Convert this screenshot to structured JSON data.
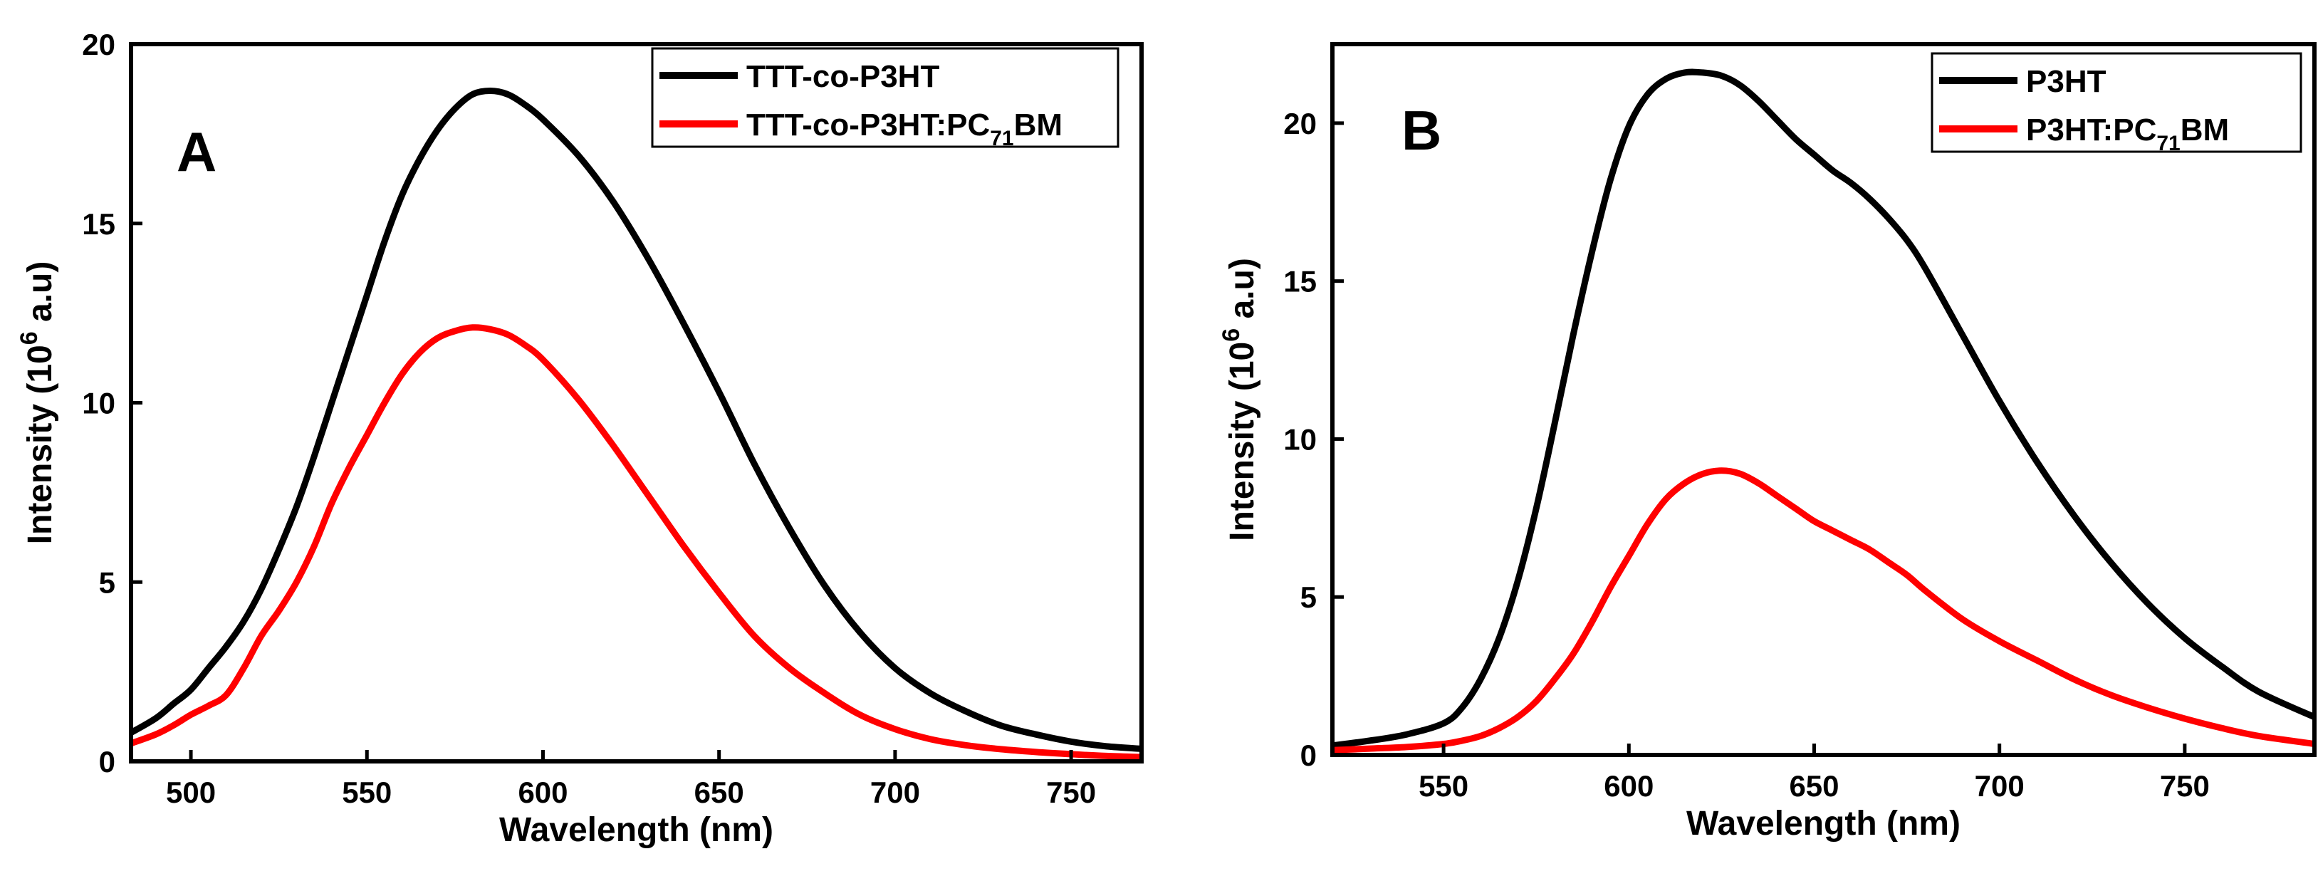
{
  "chart_data": [
    {
      "type": "line",
      "panel_label": "A",
      "xlabel": "Wavelength (nm)",
      "ylabel": {
        "main": "Intensity (10",
        "sup": "6",
        "tail": " a.u)"
      },
      "xlim": [
        483,
        770
      ],
      "ylim": [
        0,
        20
      ],
      "xticks": [
        500,
        550,
        600,
        650,
        700,
        750
      ],
      "yticks": [
        0,
        5,
        10,
        15,
        20
      ],
      "legend_position": "top-right",
      "series": [
        {
          "name": "TTT-co-P3HT",
          "legend": {
            "main": "TTT-co-P3HT",
            "sub": "",
            "tail": ""
          },
          "color": "#000000",
          "x": [
            483,
            490,
            495,
            500,
            505,
            510,
            515,
            520,
            525,
            530,
            535,
            540,
            545,
            550,
            555,
            560,
            565,
            570,
            575,
            580,
            585,
            590,
            595,
            600,
            610,
            620,
            630,
            640,
            650,
            660,
            670,
            680,
            690,
            700,
            710,
            720,
            730,
            740,
            750,
            760,
            770
          ],
          "y": [
            0.8,
            1.2,
            1.6,
            2.0,
            2.6,
            3.2,
            3.9,
            4.8,
            5.9,
            7.1,
            8.5,
            10.0,
            11.5,
            13.0,
            14.5,
            15.8,
            16.8,
            17.6,
            18.2,
            18.6,
            18.7,
            18.6,
            18.3,
            17.9,
            16.9,
            15.6,
            14.0,
            12.2,
            10.3,
            8.3,
            6.5,
            4.9,
            3.6,
            2.6,
            1.9,
            1.4,
            1.0,
            0.75,
            0.55,
            0.42,
            0.35
          ]
        },
        {
          "name": "TTT-co-P3HT:PC71BM",
          "legend": {
            "main": "TTT-co-P3HT:PC",
            "sub": "71",
            "tail": "BM"
          },
          "color": "#ff0000",
          "x": [
            483,
            490,
            495,
            500,
            505,
            510,
            515,
            520,
            525,
            530,
            535,
            540,
            545,
            550,
            555,
            560,
            565,
            570,
            575,
            580,
            585,
            590,
            595,
            600,
            610,
            620,
            630,
            640,
            650,
            660,
            670,
            680,
            690,
            700,
            710,
            720,
            730,
            740,
            750,
            760,
            770
          ],
          "y": [
            0.5,
            0.75,
            1.0,
            1.3,
            1.55,
            1.85,
            2.6,
            3.5,
            4.2,
            5.0,
            6.0,
            7.2,
            8.2,
            9.1,
            10.0,
            10.8,
            11.4,
            11.8,
            12.0,
            12.1,
            12.05,
            11.9,
            11.6,
            11.2,
            10.1,
            8.8,
            7.4,
            6.0,
            4.7,
            3.5,
            2.6,
            1.9,
            1.3,
            0.9,
            0.62,
            0.45,
            0.34,
            0.26,
            0.2,
            0.15,
            0.12
          ]
        }
      ]
    },
    {
      "type": "line",
      "panel_label": "B",
      "xlabel": "Wavelength (nm)",
      "ylabel": {
        "main": "Intensity (10",
        "sup": "6",
        "tail": " a.u)"
      },
      "xlim": [
        520,
        785
      ],
      "ylim": [
        0,
        22.5
      ],
      "xticks": [
        550,
        600,
        650,
        700,
        750
      ],
      "yticks": [
        0,
        5,
        10,
        15,
        20
      ],
      "legend_position": "top-right",
      "series": [
        {
          "name": "P3HT",
          "legend": {
            "main": "P3HT",
            "sub": "",
            "tail": ""
          },
          "color": "#000000",
          "x": [
            520,
            530,
            540,
            550,
            555,
            560,
            565,
            570,
            575,
            580,
            585,
            590,
            595,
            600,
            605,
            610,
            615,
            620,
            625,
            630,
            635,
            640,
            645,
            650,
            655,
            660,
            665,
            670,
            675,
            680,
            690,
            700,
            710,
            720,
            730,
            740,
            750,
            760,
            770,
            785
          ],
          "y": [
            0.3,
            0.45,
            0.65,
            1.0,
            1.5,
            2.4,
            3.7,
            5.5,
            7.8,
            10.5,
            13.3,
            15.9,
            18.2,
            19.9,
            20.9,
            21.4,
            21.6,
            21.6,
            21.5,
            21.2,
            20.7,
            20.1,
            19.5,
            19.0,
            18.5,
            18.1,
            17.6,
            17.0,
            16.3,
            15.4,
            13.3,
            11.2,
            9.3,
            7.6,
            6.1,
            4.8,
            3.7,
            2.8,
            2.0,
            1.2
          ]
        },
        {
          "name": "P3HT:PC71BM",
          "legend": {
            "main": "P3HT:PC",
            "sub": "71",
            "tail": "BM"
          },
          "color": "#ff0000",
          "x": [
            520,
            530,
            540,
            550,
            555,
            560,
            565,
            570,
            575,
            580,
            585,
            590,
            595,
            600,
            605,
            610,
            615,
            620,
            625,
            630,
            635,
            640,
            645,
            650,
            655,
            660,
            665,
            670,
            675,
            680,
            690,
            700,
            710,
            720,
            730,
            740,
            750,
            760,
            770,
            785
          ],
          "y": [
            0.15,
            0.2,
            0.25,
            0.35,
            0.45,
            0.6,
            0.85,
            1.2,
            1.7,
            2.4,
            3.2,
            4.2,
            5.3,
            6.3,
            7.3,
            8.1,
            8.6,
            8.9,
            9.0,
            8.9,
            8.6,
            8.2,
            7.8,
            7.4,
            7.1,
            6.8,
            6.5,
            6.1,
            5.7,
            5.2,
            4.3,
            3.6,
            3.0,
            2.4,
            1.9,
            1.5,
            1.15,
            0.85,
            0.6,
            0.35
          ]
        }
      ]
    }
  ]
}
